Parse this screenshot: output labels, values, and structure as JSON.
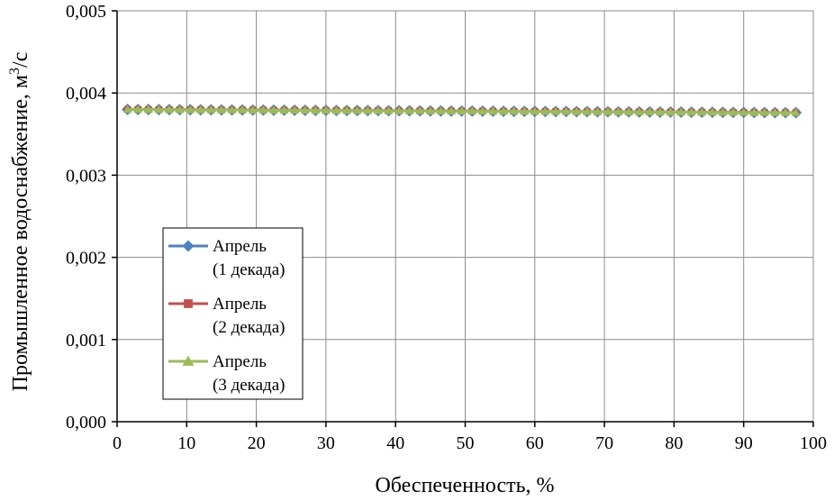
{
  "chart_data": {
    "type": "line",
    "xlabel": "Обеспеченность, %",
    "ylabel_main": "Промышленное водоснабжение, м",
    "ylabel_sup": "3",
    "ylabel_tail": "/с",
    "xlim": [
      0,
      100
    ],
    "ylim": [
      0,
      0.005
    ],
    "x_ticks": [
      0,
      10,
      20,
      30,
      40,
      50,
      60,
      70,
      80,
      90,
      100
    ],
    "x_tick_labels": [
      "0",
      "10",
      "20",
      "30",
      "40",
      "50",
      "60",
      "70",
      "80",
      "90",
      "100"
    ],
    "y_ticks": [
      0,
      0.001,
      0.002,
      0.003,
      0.004,
      0.005
    ],
    "y_tick_labels": [
      "0,000",
      "0,001",
      "0,002",
      "0,003",
      "0,004",
      "0,005"
    ],
    "grid": true,
    "legend_position": "lower-left",
    "x_start": 1.5,
    "x_end": 98.5,
    "x_step": 1.5,
    "series": [
      {
        "name_line1": "Апрель",
        "name_line2": "(1 декада)",
        "marker": "diamond",
        "color": "#4f81bd",
        "y_start": 0.0038,
        "y_end": 0.00376
      },
      {
        "name_line1": "Апрель",
        "name_line2": "(2 декада)",
        "marker": "square",
        "color": "#c0504d",
        "y_start": 0.0038,
        "y_end": 0.00376
      },
      {
        "name_line1": "Апрель",
        "name_line2": "(3 декада)",
        "marker": "triangle",
        "color": "#9bbb59",
        "y_start": 0.0038,
        "y_end": 0.00376
      }
    ]
  }
}
